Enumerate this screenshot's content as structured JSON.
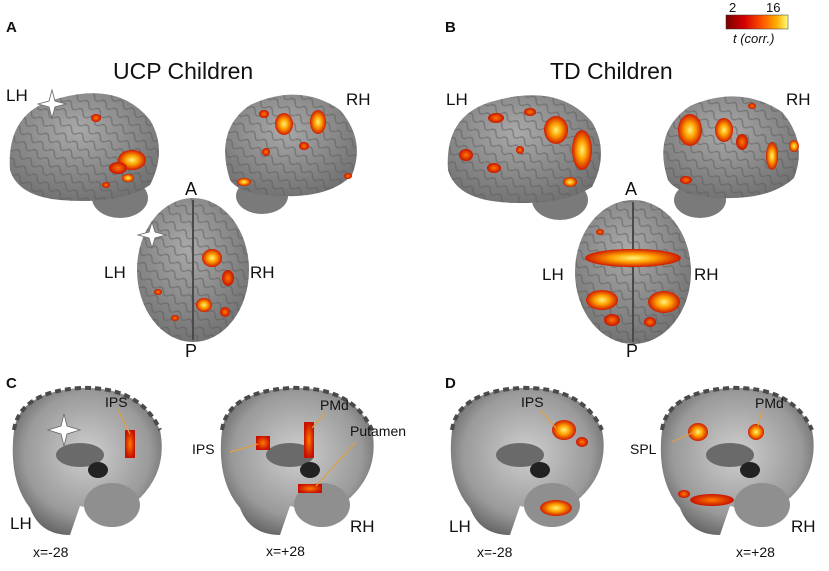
{
  "panels": {
    "A": {
      "letter": "A",
      "title": "UCP Children",
      "lh_lateral": "LH",
      "rh_lateral": "RH",
      "anterior": "A",
      "posterior": "P",
      "lh_dorsal": "LH",
      "rh_dorsal": "RH"
    },
    "B": {
      "letter": "B",
      "title": "TD Children",
      "lh_lateral": "LH",
      "rh_lateral": "RH",
      "anterior": "A",
      "posterior": "P",
      "lh_dorsal": "LH",
      "rh_dorsal": "RH"
    },
    "C": {
      "letter": "C",
      "left_hemi": "LH",
      "right_hemi": "RH",
      "left_coord": "x=-28",
      "right_coord": "x=+28",
      "left_roi": "IPS",
      "right_rois": [
        "IPS",
        "PMd",
        "Putamen"
      ]
    },
    "D": {
      "letter": "D",
      "left_hemi": "LH",
      "right_hemi": "RH",
      "left_coord": "x=-28",
      "right_coord": "x=+28",
      "left_roi": "IPS",
      "right_rois": [
        "SPL",
        "PMd"
      ]
    }
  },
  "colorbar": {
    "min": "2",
    "max": "16",
    "label": "t (corr.)",
    "colors": [
      "#7a0000",
      "#d40000",
      "#ff5a00",
      "#ffb000",
      "#ffff80"
    ]
  },
  "colors": {
    "brain_surface": "#8a8a8a",
    "brain_gyri": "#b5b5b5",
    "activation_low": "#c81400",
    "activation_high": "#ffe24a",
    "leader_line": "#e0a040"
  }
}
